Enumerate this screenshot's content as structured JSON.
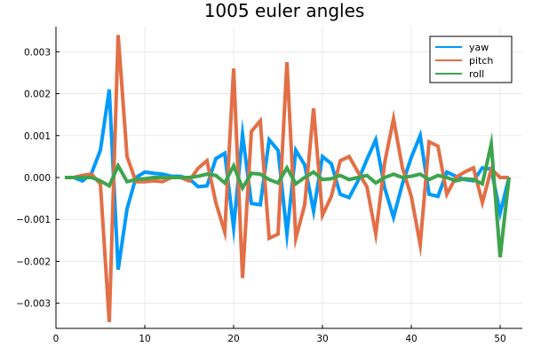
{
  "chart_data": {
    "type": "line",
    "title": "1005 euler angles",
    "xlabel": "",
    "ylabel": "",
    "xlim": [
      0,
      52.5
    ],
    "ylim": [
      -0.0036,
      0.0036
    ],
    "xticks": [
      0,
      10,
      20,
      30,
      40,
      50
    ],
    "xtick_labels": [
      "0",
      "10",
      "20",
      "30",
      "40",
      "50"
    ],
    "yticks": [
      -0.003,
      -0.002,
      -0.001,
      0.0,
      0.001,
      0.002,
      0.003
    ],
    "ytick_labels": [
      "−0.003",
      "−0.002",
      "−0.001",
      "0.000",
      "0.001",
      "0.002",
      "0.003"
    ],
    "grid": true,
    "legend_position": "top-right",
    "x": [
      1,
      2,
      3,
      4,
      5,
      6,
      7,
      8,
      9,
      10,
      11,
      12,
      13,
      14,
      15,
      16,
      17,
      18,
      19,
      20,
      21,
      22,
      23,
      24,
      25,
      26,
      27,
      28,
      29,
      30,
      31,
      32,
      33,
      34,
      35,
      36,
      37,
      38,
      39,
      40,
      41,
      42,
      43,
      44,
      45,
      46,
      47,
      48,
      49,
      50,
      51
    ],
    "series": [
      {
        "name": "yaw",
        "color": "#009AFA",
        "values": [
          0.0,
          0.0,
          -8e-05,
          0.0001,
          0.00065,
          0.0021,
          -0.0022,
          -0.00075,
          0.0,
          0.00013,
          0.0001,
          8e-05,
          3e-05,
          3e-05,
          -3e-05,
          -0.00022,
          -0.0002,
          0.00045,
          0.00058,
          -0.0012,
          0.00103,
          -0.00062,
          -0.00065,
          0.0009,
          0.00065,
          -0.00135,
          0.00065,
          0.0003,
          -0.0008,
          0.0005,
          0.00033,
          -0.0004,
          -0.00048,
          -8e-05,
          0.00043,
          0.0009,
          -0.00025,
          -0.00095,
          -0.00015,
          0.00048,
          0.001,
          -0.0004,
          -0.00045,
          0.00013,
          3e-05,
          -5e-05,
          -8e-05,
          0.00023,
          0.0002,
          -0.00085,
          0.0
        ]
      },
      {
        "name": "pitch",
        "color": "#E26F46",
        "values": [
          0.0,
          0.0,
          5e-05,
          8e-05,
          -0.00015,
          -0.00345,
          0.0034,
          0.0005,
          -0.0001,
          -0.0001,
          -8e-05,
          -0.0001,
          0.0,
          0.0,
          -8e-05,
          0.00022,
          0.0004,
          -0.0006,
          -0.0013,
          0.0026,
          -0.0024,
          0.0011,
          0.00135,
          -0.00145,
          -0.00135,
          0.00275,
          -0.00145,
          -0.00065,
          0.00165,
          -0.0009,
          -0.00045,
          0.0004,
          0.0005,
          0.00013,
          -0.00022,
          -0.00135,
          0.00035,
          0.0014,
          0.00023,
          -0.00045,
          -0.0016,
          0.00085,
          0.00075,
          -0.0004,
          0.0,
          0.00013,
          0.00023,
          -0.0006,
          0.0002,
          0.0,
          0.0
        ]
      },
      {
        "name": "roll",
        "color": "#3DA44D",
        "values": [
          0.0,
          0.0,
          0.0,
          0.0,
          -8e-05,
          -0.0002,
          0.00028,
          -0.0001,
          -5e-05,
          -3e-05,
          0.0,
          0.0,
          0.0,
          0.0,
          0.0,
          3e-05,
          8e-05,
          5e-05,
          -0.00013,
          0.00028,
          -0.00025,
          0.0001,
          8e-05,
          -5e-05,
          -0.00013,
          0.00023,
          -0.00015,
          0.0,
          0.00013,
          -5e-05,
          -3e-05,
          5e-05,
          -5e-05,
          0.0,
          5e-05,
          -0.00013,
          0.0,
          8e-05,
          0.0,
          3e-05,
          8e-05,
          -5e-05,
          5e-05,
          0.0,
          -8e-05,
          -3e-05,
          -5e-05,
          -0.00015,
          0.0008,
          -0.0019,
          0.0
        ]
      }
    ]
  }
}
